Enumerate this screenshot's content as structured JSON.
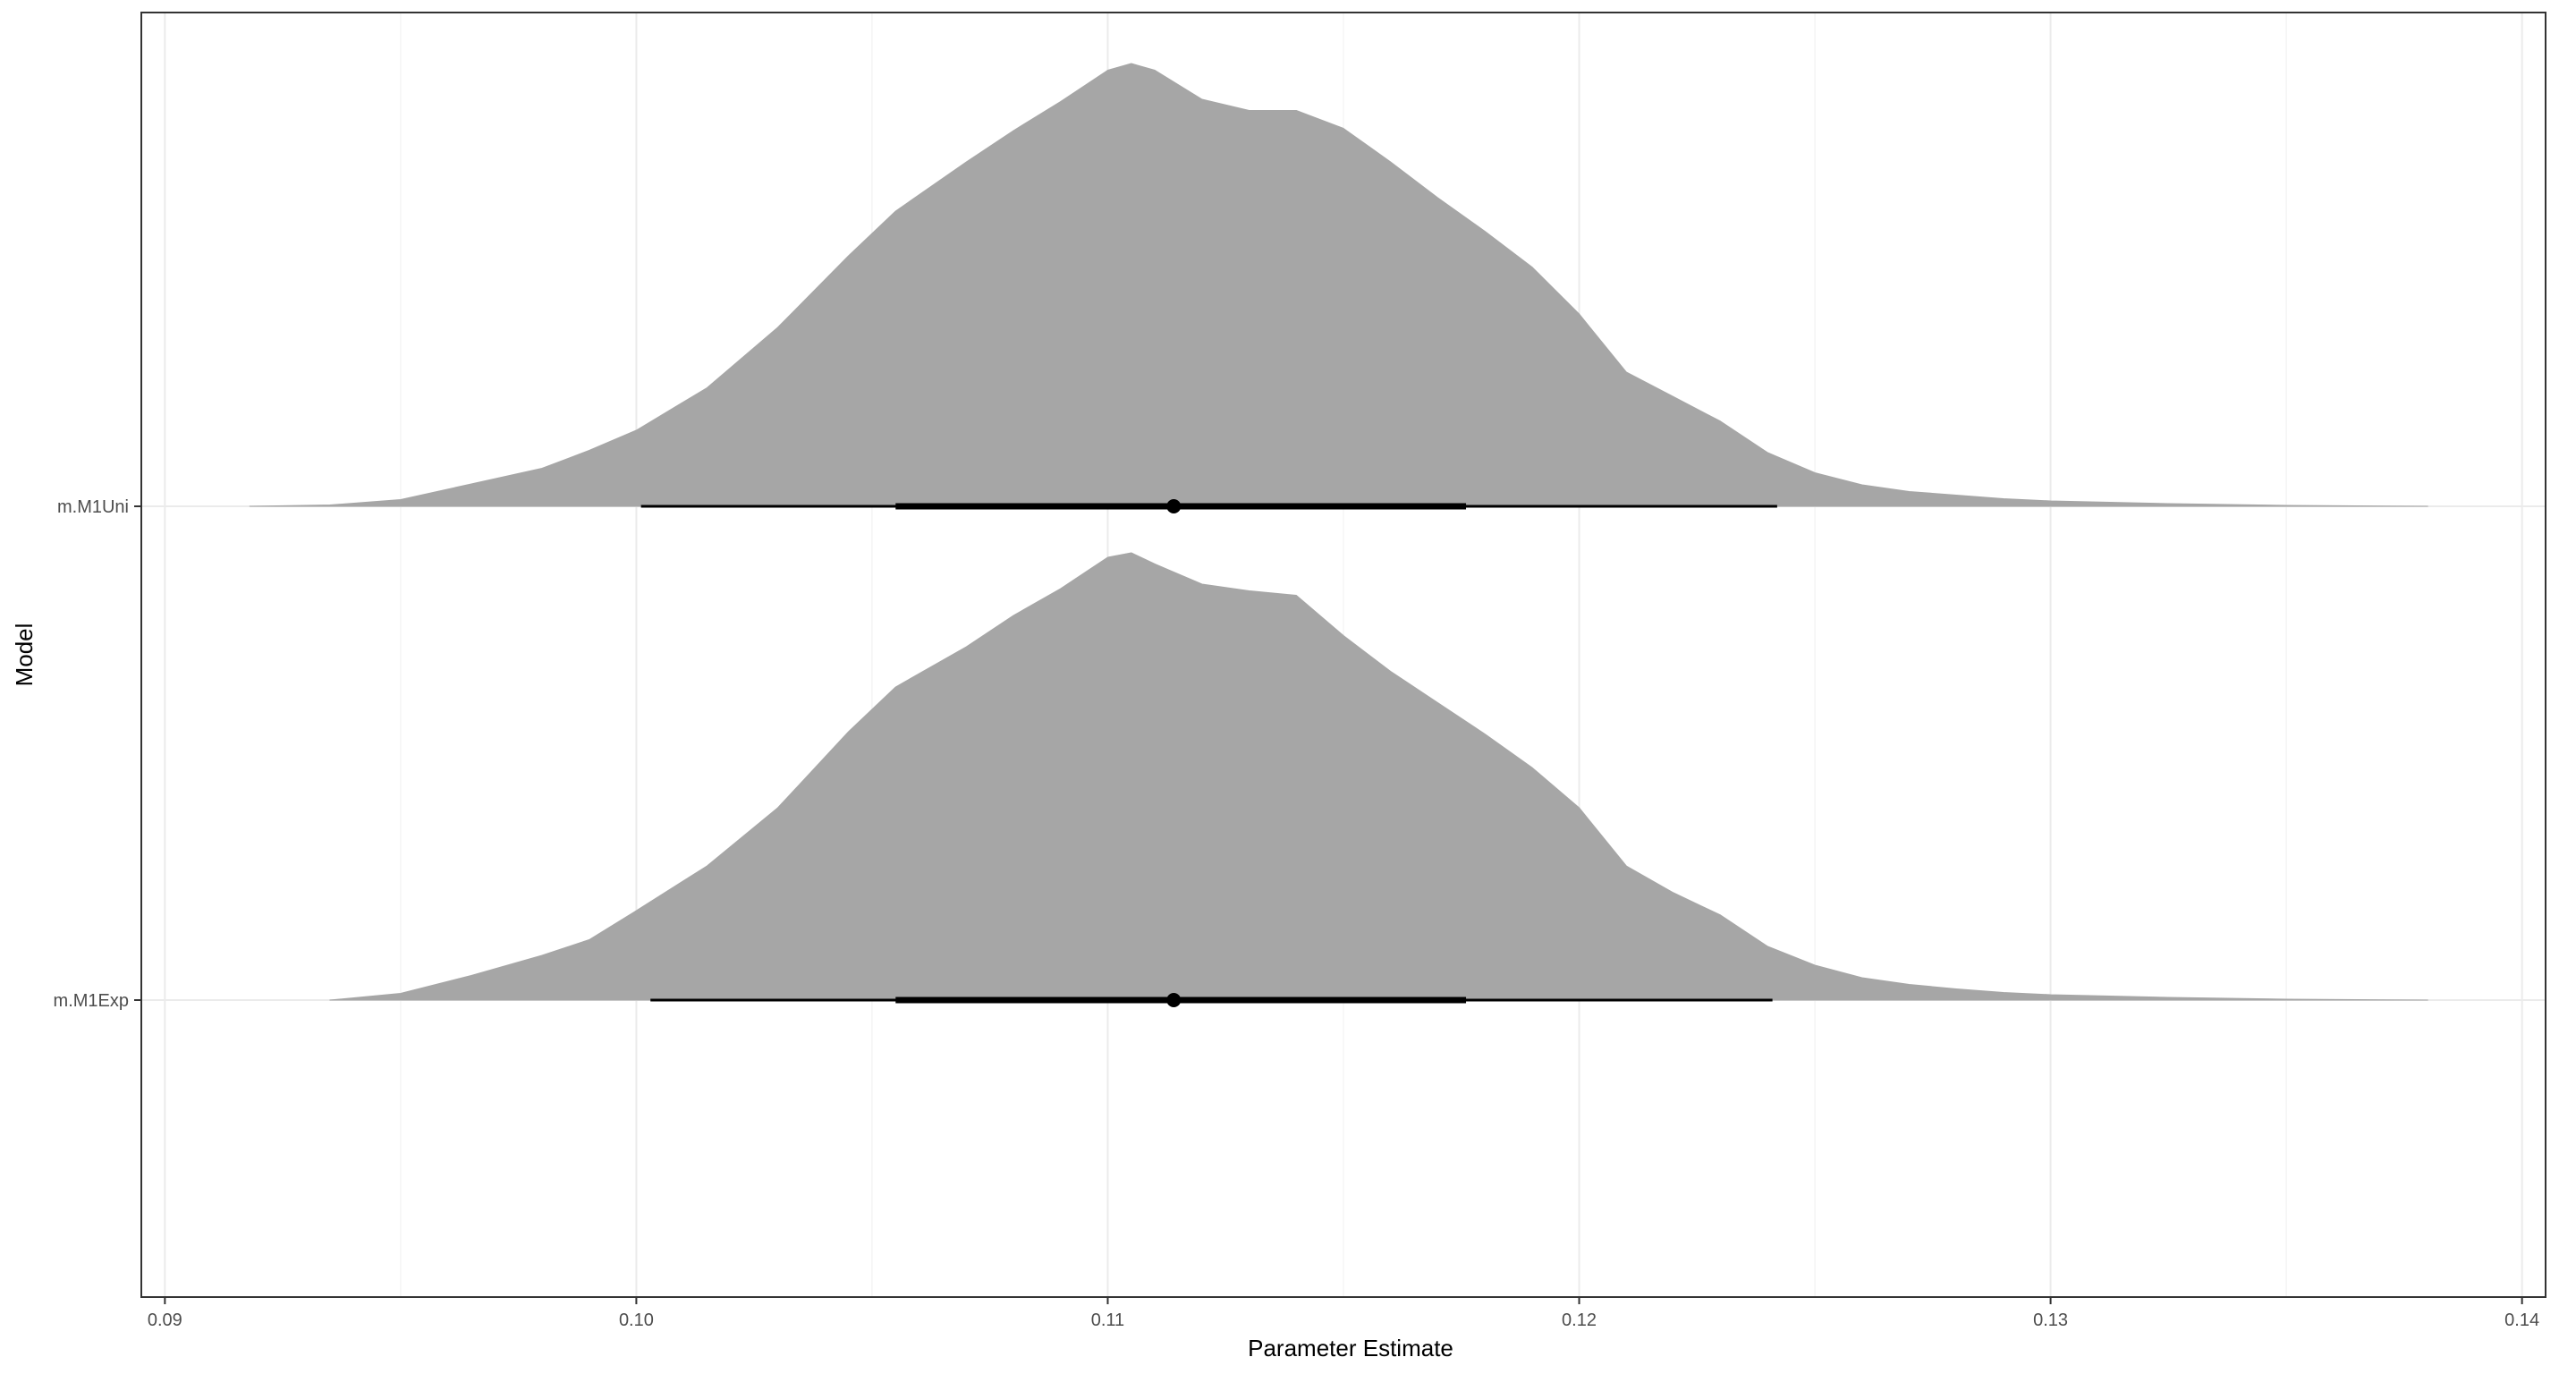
{
  "chart_data": {
    "type": "halfeye",
    "title": "",
    "xlabel": "Parameter Estimate",
    "ylabel": "Model",
    "xlim": [
      0.0895,
      0.1405
    ],
    "x_ticks": [
      0.09,
      0.1,
      0.11,
      0.12,
      0.13,
      0.14
    ],
    "x_tick_labels": [
      "0.09",
      "0.10",
      "0.11",
      "0.12",
      "0.13",
      "0.14"
    ],
    "x_minor_ticks": [
      0.095,
      0.105,
      0.115,
      0.125,
      0.135
    ],
    "grid": true,
    "legend": "none",
    "fill_color": "#a6a6a6",
    "interval_color": "#000000",
    "series": [
      {
        "name": "m.M1Uni",
        "median": 0.1114,
        "interval_66": [
          0.1055,
          0.1176
        ],
        "interval_95": [
          0.1001,
          0.1242
        ],
        "density": {
          "x": [
            0.0918,
            0.0935,
            0.095,
            0.0965,
            0.098,
            0.099,
            0.1,
            0.1015,
            0.103,
            0.1045,
            0.1055,
            0.107,
            0.108,
            0.109,
            0.11,
            0.1105,
            0.111,
            0.112,
            0.113,
            0.114,
            0.115,
            0.116,
            0.117,
            0.118,
            0.119,
            0.12,
            0.121,
            0.122,
            0.123,
            0.124,
            0.125,
            0.126,
            0.127,
            0.128,
            0.129,
            0.13,
            0.1325,
            0.135,
            0.1365,
            0.138
          ],
          "y": [
            0.0,
            0.003,
            0.015,
            0.05,
            0.085,
            0.125,
            0.17,
            0.265,
            0.4,
            0.56,
            0.66,
            0.77,
            0.84,
            0.905,
            0.975,
            0.99,
            0.975,
            0.91,
            0.885,
            0.885,
            0.845,
            0.77,
            0.69,
            0.615,
            0.535,
            0.43,
            0.3,
            0.245,
            0.19,
            0.12,
            0.075,
            0.048,
            0.033,
            0.025,
            0.017,
            0.012,
            0.006,
            0.002,
            0.001,
            0.0
          ]
        }
      },
      {
        "name": "m.M1Exp",
        "median": 0.1114,
        "interval_66": [
          0.1055,
          0.1176
        ],
        "interval_95": [
          0.1003,
          0.1241
        ],
        "density": {
          "x": [
            0.0935,
            0.095,
            0.0965,
            0.098,
            0.099,
            0.1,
            0.1015,
            0.103,
            0.1045,
            0.1055,
            0.107,
            0.108,
            0.109,
            0.11,
            0.1105,
            0.111,
            0.112,
            0.113,
            0.114,
            0.115,
            0.116,
            0.117,
            0.118,
            0.119,
            0.12,
            0.121,
            0.122,
            0.123,
            0.124,
            0.125,
            0.126,
            0.127,
            0.128,
            0.129,
            0.13,
            0.1325,
            0.135,
            0.1365,
            0.138
          ],
          "y": [
            0.0,
            0.015,
            0.055,
            0.1,
            0.135,
            0.2,
            0.3,
            0.43,
            0.6,
            0.7,
            0.79,
            0.86,
            0.92,
            0.99,
            1.0,
            0.975,
            0.93,
            0.915,
            0.905,
            0.815,
            0.735,
            0.665,
            0.595,
            0.52,
            0.43,
            0.3,
            0.24,
            0.19,
            0.12,
            0.078,
            0.05,
            0.035,
            0.025,
            0.017,
            0.012,
            0.006,
            0.002,
            0.001,
            0.0
          ]
        }
      }
    ]
  }
}
